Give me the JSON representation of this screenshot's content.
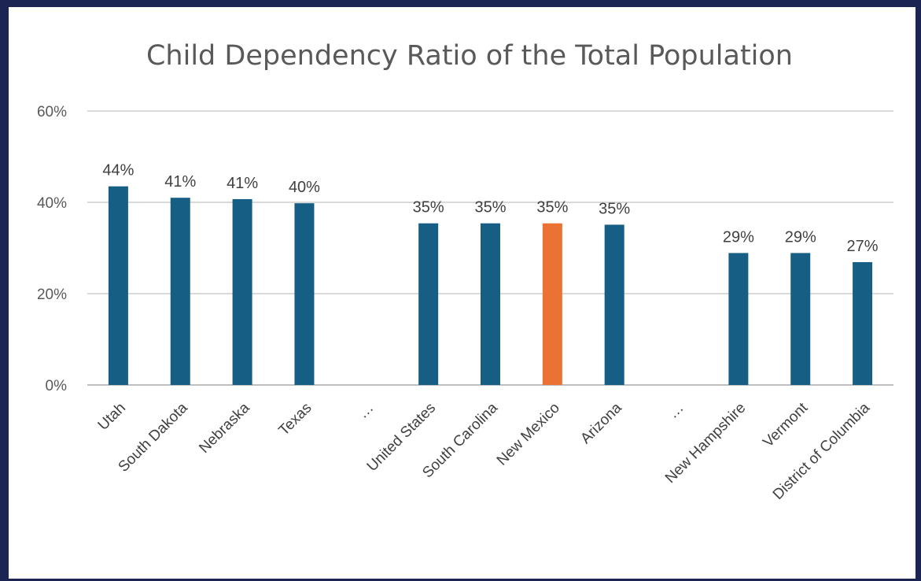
{
  "chart_data": {
    "type": "bar",
    "title": "Child Dependency Ratio of the Total Population",
    "xlabel": "",
    "ylabel": "",
    "ylim": [
      0,
      60
    ],
    "y_ticks": [
      "0%",
      "20%",
      "40%",
      "60%"
    ],
    "y_tick_values": [
      0,
      20,
      40,
      60
    ],
    "categories": [
      "Utah",
      "South Dakota",
      "Nebraska",
      "Texas",
      "…",
      "United States",
      "South Carolina",
      "New Mexico",
      "Arizona",
      "…",
      "New Hampshire",
      "Vermont",
      "District of Columbia"
    ],
    "values": [
      43.5,
      41,
      40.7,
      39.8,
      null,
      35.4,
      35.4,
      35.4,
      35.1,
      null,
      28.9,
      28.9,
      26.9
    ],
    "data_labels": [
      "44%",
      "41%",
      "41%",
      "40%",
      "",
      "35%",
      "35%",
      "35%",
      "35%",
      "",
      "29%",
      "29%",
      "27%"
    ],
    "highlight_category": "New Mexico",
    "colors": {
      "bar": "#165e83",
      "highlight": "#ea7233",
      "grid": "#d9d9d9"
    },
    "grid": true,
    "legend": "none"
  }
}
